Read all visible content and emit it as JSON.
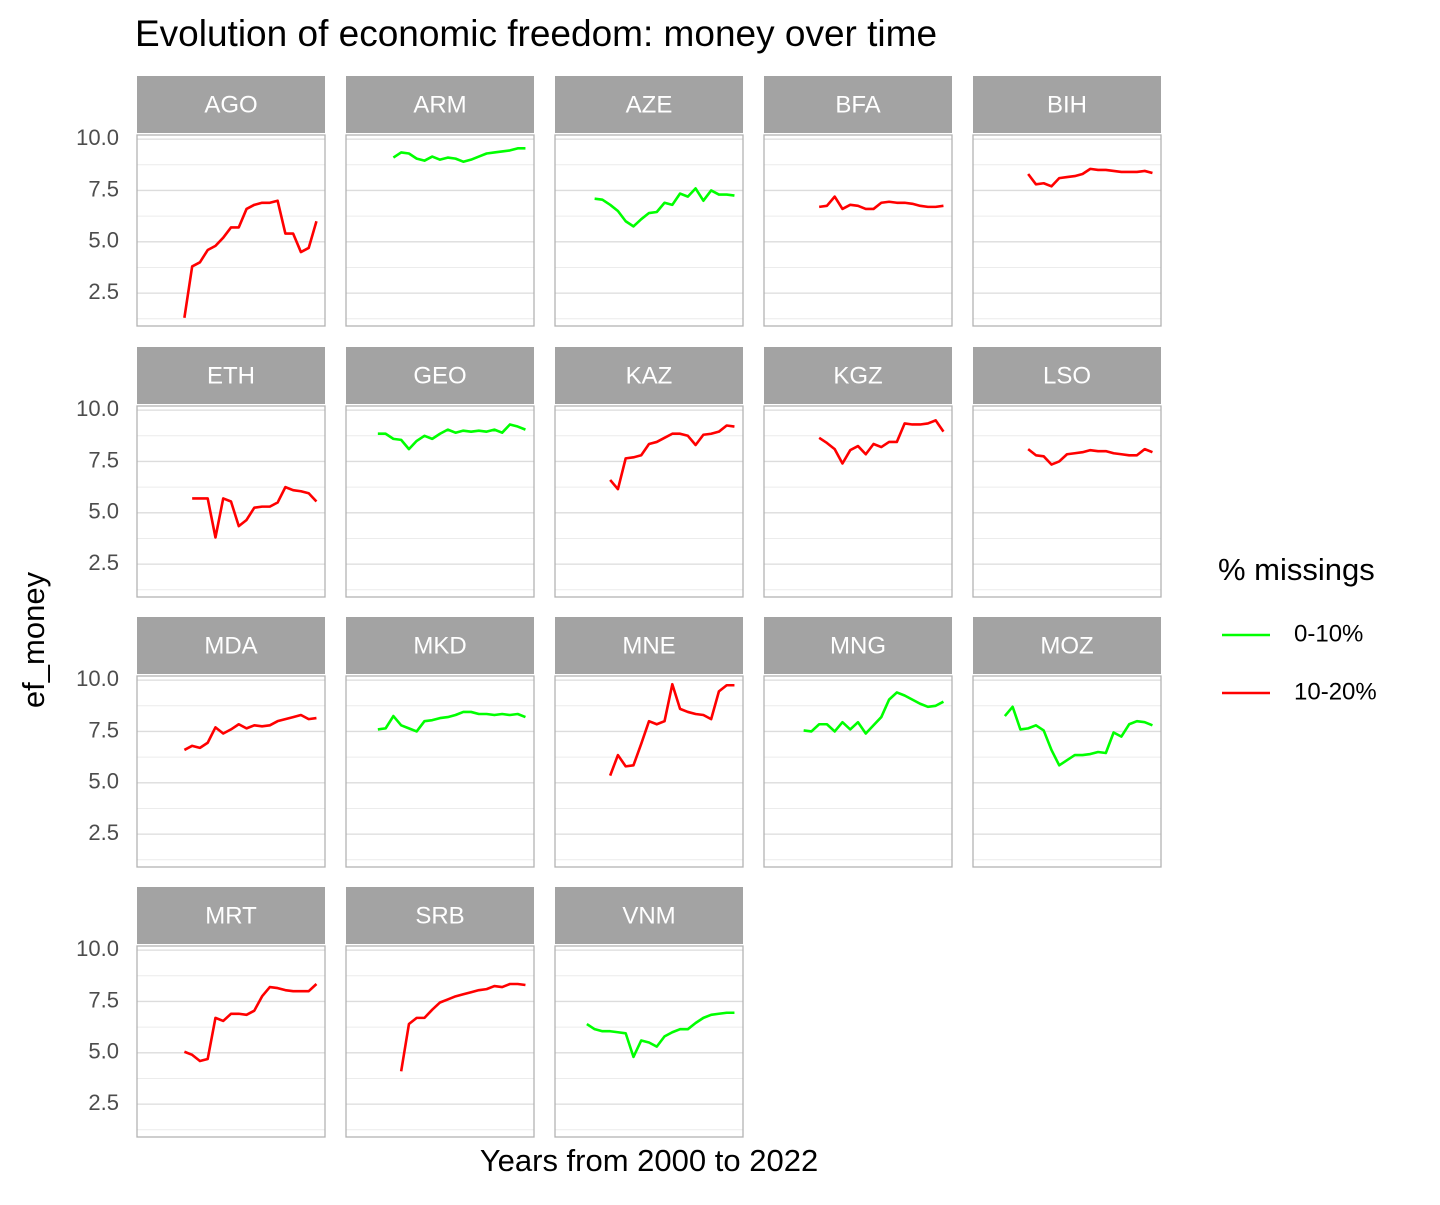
{
  "chart_data": {
    "type": "line",
    "title": "Evolution of economic freedom: money over time",
    "x_label": "Years from 2000 to 2022",
    "y_label": "ef_money",
    "legend_title": "% missings",
    "groups": [
      {
        "name": "0-10%",
        "color": "#00ff00"
      },
      {
        "name": "10-20%",
        "color": "#ff0000"
      }
    ],
    "x": [
      2000,
      2001,
      2002,
      2003,
      2004,
      2005,
      2006,
      2007,
      2008,
      2009,
      2010,
      2011,
      2012,
      2013,
      2014,
      2015,
      2016,
      2017,
      2018,
      2019,
      2020,
      2021,
      2022
    ],
    "xlim": [
      1998.9,
      2023.1
    ],
    "ylim": [
      0.9,
      10.2
    ],
    "yticks": [
      {
        "value": 2.5,
        "label": "2.5"
      },
      {
        "value": 5,
        "label": "5.0"
      },
      {
        "value": 7.5,
        "label": "7.5"
      },
      {
        "value": 10,
        "label": "10.0"
      }
    ],
    "minor_yticks": [
      1.25,
      3.75,
      6.25,
      8.75
    ],
    "grid": true,
    "columns": 5,
    "panels": [
      {
        "name": "AGO",
        "group": 1,
        "values": [
          null,
          null,
          null,
          null,
          null,
          1.3,
          3.8,
          4.0,
          4.6,
          4.8,
          5.2,
          5.7,
          5.7,
          6.6,
          6.8,
          6.9,
          6.9,
          7.0,
          5.4,
          5.4,
          4.5,
          4.7,
          6.0
        ]
      },
      {
        "name": "ARM",
        "group": 0,
        "values": [
          null,
          null,
          null,
          null,
          null,
          9.1,
          9.35,
          9.3,
          9.05,
          8.95,
          9.15,
          9.0,
          9.1,
          9.05,
          8.9,
          9.0,
          9.15,
          9.3,
          9.35,
          9.4,
          9.45,
          9.55,
          9.55
        ]
      },
      {
        "name": "AZE",
        "group": 0,
        "values": [
          null,
          null,
          null,
          null,
          7.1,
          7.05,
          6.8,
          6.5,
          6.0,
          5.75,
          6.1,
          6.4,
          6.45,
          6.9,
          6.8,
          7.35,
          7.2,
          7.6,
          7.0,
          7.5,
          7.3,
          7.3,
          7.25
        ]
      },
      {
        "name": "BFA",
        "group": 1,
        "values": [
          null,
          null,
          null,
          null,
          null,
          null,
          6.7,
          6.75,
          7.2,
          6.6,
          6.8,
          6.75,
          6.6,
          6.6,
          6.9,
          6.95,
          6.9,
          6.9,
          6.85,
          6.75,
          6.7,
          6.7,
          6.75
        ]
      },
      {
        "name": "BIH",
        "group": 1,
        "values": [
          null,
          null,
          null,
          null,
          null,
          null,
          8.3,
          7.8,
          7.85,
          7.7,
          8.1,
          8.15,
          8.2,
          8.3,
          8.55,
          8.5,
          8.5,
          8.45,
          8.4,
          8.4,
          8.4,
          8.45,
          8.35
        ]
      },
      {
        "name": "ETH",
        "group": 1,
        "values": [
          null,
          null,
          null,
          null,
          null,
          null,
          5.7,
          5.7,
          5.7,
          3.8,
          5.7,
          5.55,
          4.35,
          4.65,
          5.25,
          5.3,
          5.3,
          5.5,
          6.25,
          6.1,
          6.05,
          5.95,
          5.55
        ]
      },
      {
        "name": "GEO",
        "group": 0,
        "values": [
          null,
          null,
          null,
          8.85,
          8.85,
          8.6,
          8.55,
          8.1,
          8.5,
          8.75,
          8.6,
          8.85,
          9.05,
          8.9,
          9.0,
          8.95,
          9.0,
          8.95,
          9.05,
          8.9,
          9.3,
          9.2,
          9.05
        ]
      },
      {
        "name": "KAZ",
        "group": 1,
        "values": [
          null,
          null,
          null,
          null,
          null,
          null,
          6.6,
          6.15,
          7.65,
          7.7,
          7.8,
          8.35,
          8.45,
          8.65,
          8.85,
          8.85,
          8.75,
          8.3,
          8.8,
          8.85,
          8.95,
          9.25,
          9.2
        ]
      },
      {
        "name": "KGZ",
        "group": 1,
        "values": [
          null,
          null,
          null,
          null,
          null,
          null,
          8.65,
          8.4,
          8.1,
          7.4,
          8.05,
          8.25,
          7.85,
          8.35,
          8.2,
          8.45,
          8.45,
          9.35,
          9.3,
          9.3,
          9.35,
          9.5,
          8.95
        ]
      },
      {
        "name": "LSO",
        "group": 1,
        "values": [
          null,
          null,
          null,
          null,
          null,
          null,
          8.1,
          7.8,
          7.75,
          7.35,
          7.5,
          7.85,
          7.9,
          7.95,
          8.05,
          8.0,
          8.0,
          7.9,
          7.85,
          7.8,
          7.8,
          8.1,
          7.95
        ]
      },
      {
        "name": "MDA",
        "group": 1,
        "values": [
          null,
          null,
          null,
          null,
          null,
          6.6,
          6.8,
          6.7,
          6.95,
          7.7,
          7.4,
          7.6,
          7.85,
          7.65,
          7.8,
          7.75,
          7.8,
          8.0,
          8.1,
          8.2,
          8.3,
          8.1,
          8.15
        ]
      },
      {
        "name": "MKD",
        "group": 0,
        "values": [
          null,
          null,
          null,
          7.6,
          7.65,
          8.25,
          7.8,
          7.65,
          7.5,
          8.0,
          8.05,
          8.15,
          8.2,
          8.3,
          8.45,
          8.45,
          8.35,
          8.35,
          8.3,
          8.35,
          8.3,
          8.35,
          8.2
        ]
      },
      {
        "name": "MNE",
        "group": 1,
        "values": [
          null,
          null,
          null,
          null,
          null,
          null,
          5.35,
          6.35,
          5.8,
          5.85,
          6.9,
          8.0,
          7.85,
          8.0,
          9.8,
          8.6,
          8.45,
          8.35,
          8.3,
          8.1,
          9.45,
          9.75,
          9.75
        ]
      },
      {
        "name": "MNG",
        "group": 0,
        "values": [
          null,
          null,
          null,
          null,
          7.55,
          7.5,
          7.85,
          7.85,
          7.5,
          7.95,
          7.6,
          7.95,
          7.4,
          7.8,
          8.2,
          9.05,
          9.4,
          9.25,
          9.05,
          8.85,
          8.7,
          8.75,
          8.95
        ]
      },
      {
        "name": "MOZ",
        "group": 0,
        "values": [
          null,
          null,
          null,
          8.25,
          8.7,
          7.6,
          7.65,
          7.8,
          7.55,
          6.6,
          5.85,
          6.1,
          6.35,
          6.35,
          6.4,
          6.5,
          6.45,
          7.45,
          7.25,
          7.85,
          8.0,
          7.95,
          7.8
        ]
      },
      {
        "name": "MRT",
        "group": 1,
        "values": [
          null,
          null,
          null,
          null,
          null,
          5.05,
          4.9,
          4.6,
          4.7,
          6.7,
          6.55,
          6.9,
          6.9,
          6.85,
          7.05,
          7.75,
          8.2,
          8.15,
          8.05,
          8.0,
          8.0,
          8.0,
          8.35
        ]
      },
      {
        "name": "SRB",
        "group": 1,
        "values": [
          null,
          null,
          null,
          null,
          null,
          null,
          4.1,
          6.4,
          6.7,
          6.7,
          7.1,
          7.45,
          7.6,
          7.75,
          7.85,
          7.95,
          8.05,
          8.1,
          8.25,
          8.2,
          8.35,
          8.35,
          8.3
        ]
      },
      {
        "name": "VNM",
        "group": 0,
        "values": [
          null,
          null,
          null,
          6.4,
          6.15,
          6.05,
          6.05,
          6.0,
          5.95,
          4.8,
          5.6,
          5.5,
          5.3,
          5.8,
          6.0,
          6.15,
          6.15,
          6.45,
          6.7,
          6.85,
          6.9,
          6.95,
          6.95
        ]
      }
    ]
  }
}
